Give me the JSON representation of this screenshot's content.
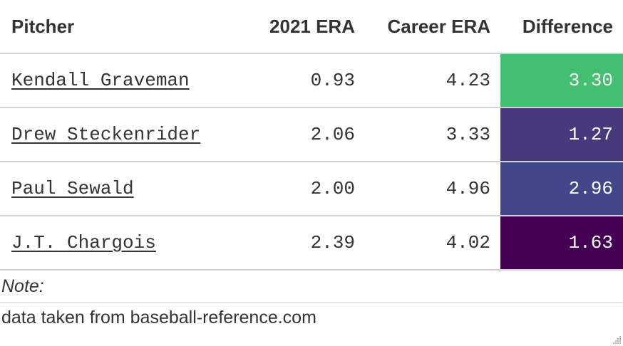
{
  "table": {
    "columns": [
      "Pitcher",
      "2021 ERA",
      "Career ERA",
      "Difference"
    ],
    "rows": [
      {
        "pitcher": "Kendall Graveman",
        "era_2021": "0.93",
        "career_era": "4.23",
        "difference": "3.30",
        "diff_color": "#43bf71"
      },
      {
        "pitcher": "Drew Steckenrider",
        "era_2021": "2.06",
        "career_era": "3.33",
        "difference": "1.27",
        "diff_color": "#47397e"
      },
      {
        "pitcher": "Paul Sewald",
        "era_2021": "2.00",
        "career_era": "4.96",
        "difference": "2.96",
        "diff_color": "#41478a"
      },
      {
        "pitcher": "J.T. Chargois",
        "era_2021": "2.39",
        "career_era": "4.02",
        "difference": "1.63",
        "diff_color": "#440154"
      }
    ]
  },
  "note": {
    "label": "Note:",
    "text": "data taken from baseball-reference.com"
  },
  "icons": {
    "resize_handle": "resize-grip-icon"
  }
}
